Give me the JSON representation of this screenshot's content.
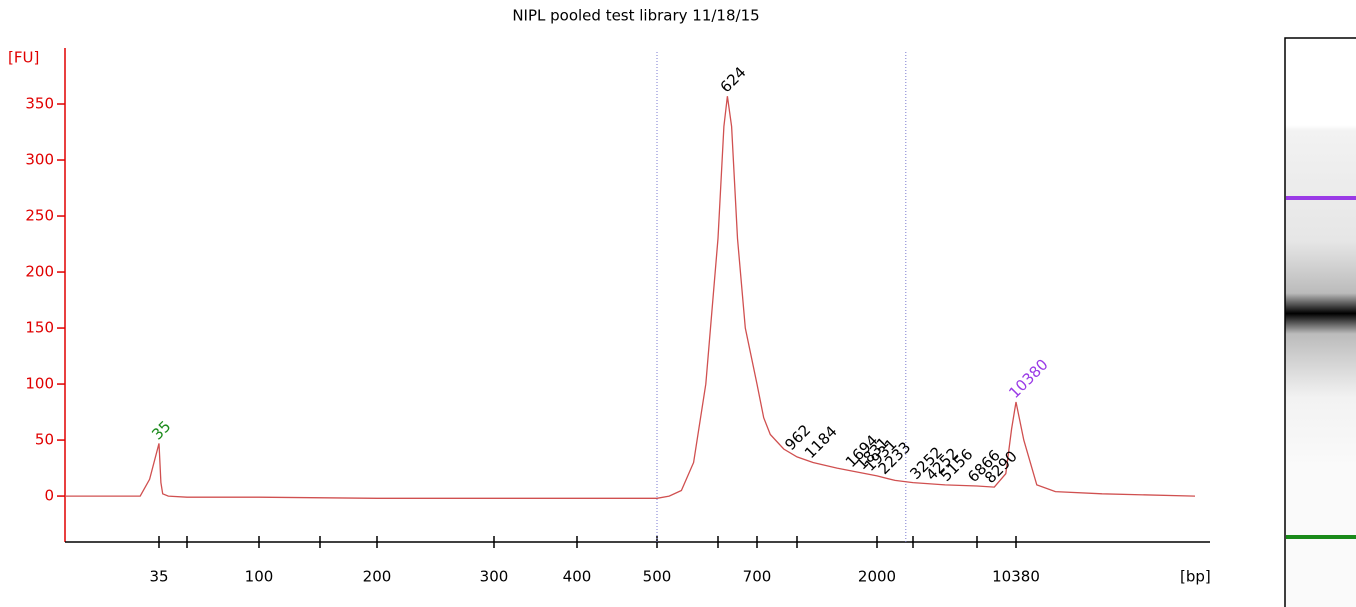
{
  "chart_data": {
    "type": "line",
    "title": "NIPL pooled test  library  11/18/15",
    "y_label": "[FU]",
    "x_label": "[bp]",
    "xlim": [
      25,
      20000
    ],
    "xticks": [
      35,
      100,
      200,
      300,
      400,
      500,
      700,
      2000,
      10380
    ],
    "xminorticks": [
      50,
      150,
      600,
      1000,
      3000,
      7000
    ],
    "ylim": [
      -41,
      400
    ],
    "yticks": [
      0,
      50,
      100,
      150,
      200,
      250,
      300,
      350
    ],
    "axis_color": "#e00000",
    "region_bounds": [
      500,
      2800
    ],
    "series": [
      {
        "color": "#d05050",
        "x": [
          25,
          33,
          34,
          35,
          36,
          37,
          40,
          50,
          100,
          200,
          300,
          400,
          480,
          500,
          520,
          540,
          560,
          580,
          600,
          615,
          624,
          635,
          650,
          670,
          700,
          750,
          800,
          900,
          1000,
          1200,
          1500,
          2000,
          2500,
          3000,
          5000,
          7000,
          8500,
          9500,
          10000,
          10380,
          10800,
          11500,
          12500,
          15000,
          20000
        ],
        "values": [
          0,
          0,
          15,
          47,
          12,
          2,
          0,
          -1,
          -1,
          -2,
          -2,
          -2,
          -2,
          -2,
          0,
          5,
          30,
          100,
          230,
          330,
          357,
          330,
          230,
          150,
          100,
          70,
          55,
          42,
          35,
          30,
          25,
          18,
          14,
          12,
          10,
          9,
          8,
          20,
          60,
          84,
          50,
          10,
          4,
          2,
          0
        ]
      }
    ],
    "peak_labels": {
      "values": [
        35,
        624,
        962,
        1184,
        1694,
        1831,
        1931,
        2233,
        3252,
        4252,
        5156,
        6866,
        8290,
        10380
      ],
      "colors": [
        "#1a8a1a",
        "#000000",
        "#000000",
        "#000000",
        "#000000",
        "#000000",
        "#000000",
        "#000000",
        "#000000",
        "#000000",
        "#000000",
        "#000000",
        "#000000",
        "#9a3ae6"
      ]
    }
  }
}
